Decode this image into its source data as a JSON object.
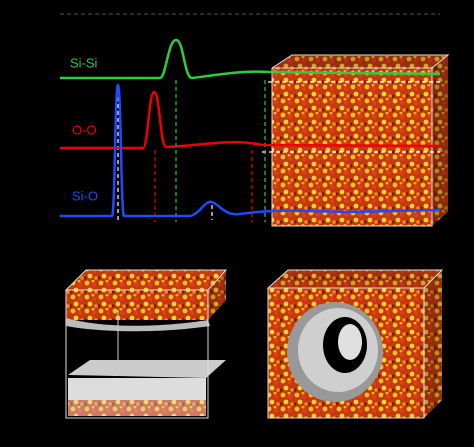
{
  "curves": [
    {
      "label": "Si-Si"
    },
    {
      "label": "O-O"
    },
    {
      "label": "Si-O"
    }
  ]
}
